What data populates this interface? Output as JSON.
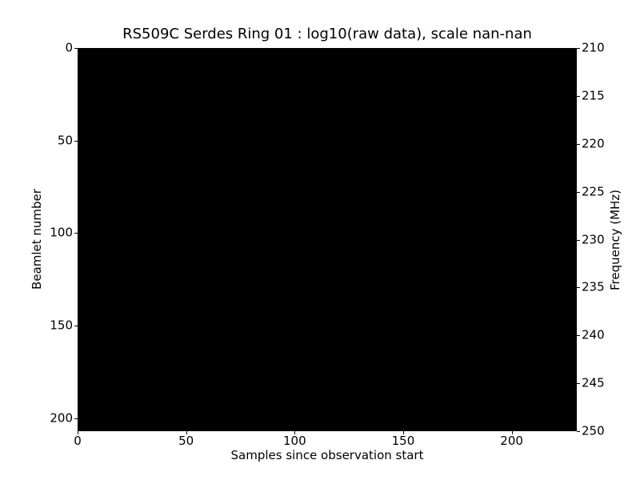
{
  "figure": {
    "background_color": "#ffffff",
    "text_color": "#000000"
  },
  "chart_data": {
    "type": "heatmap",
    "title": "RS509C Serdes Ring 01 : log10(raw data), scale nan-nan",
    "xlabel": "Samples since observation start",
    "ylabel": "Beamlet number",
    "ylabel_right": "Frequency (MHz)",
    "x_ticks": [
      0,
      50,
      100,
      150,
      200
    ],
    "xlim": [
      0,
      230
    ],
    "y_ticks": [
      0,
      50,
      100,
      150,
      200
    ],
    "ylim": [
      0,
      207
    ],
    "y_axis_inverted": true,
    "y_ticks_right": [
      210,
      215,
      220,
      225,
      230,
      235,
      240,
      245,
      250
    ],
    "ylim_right": [
      210,
      250
    ],
    "values": "uniform minimum — entire image rendered solid black because color scale is nan to nan",
    "image_color": "#000000",
    "grid": false,
    "legend": false,
    "colorbar": false
  }
}
